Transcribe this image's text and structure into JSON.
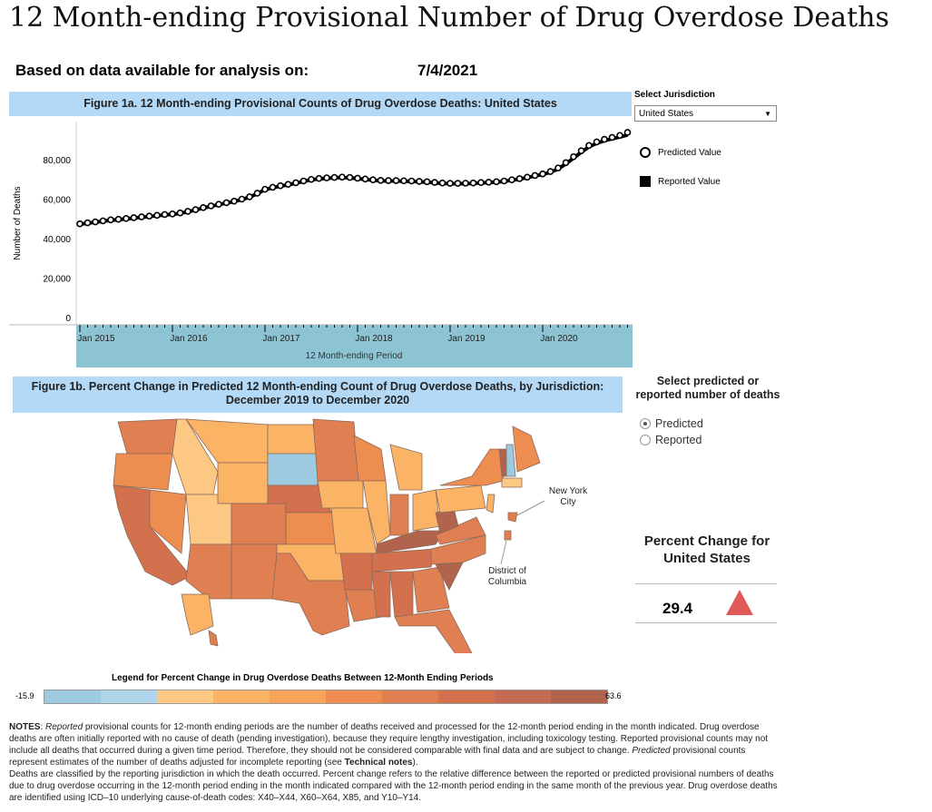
{
  "page": {
    "title": "12 Month-ending Provisional Number of Drug Overdose Deaths",
    "based_label": "Based on data available for analysis on:",
    "date": "7/4/2021"
  },
  "controls": {
    "jurisdiction_label": "Select Jurisdiction",
    "jurisdiction_value": "United States",
    "legend_predicted": "Predicted Value",
    "legend_reported": "Reported Value",
    "select_label": "Select predicted or reported number of deaths",
    "radio_predicted": "Predicted",
    "radio_reported": "Reported"
  },
  "figure1b": {
    "title": "Figure 1b. Percent Change in Predicted 12 Month-ending Count of Drug Overdose Deaths, by Jurisdiction: December 2019 to December 2020",
    "nyc": "New York City",
    "dc": "District of Columbia",
    "legend_title": "Legend for Percent Change in Drug Overdose Deaths Between 12-Month Ending Periods",
    "legend_min": "-15.9",
    "legend_max": "63.6",
    "ramp": [
      "#9ecae1",
      "#b0d6ec",
      "#fdc883",
      "#fbb366",
      "#f7a35a",
      "#ee8d50",
      "#e07f51",
      "#d3714f",
      "#c46a52",
      "#b0634d"
    ]
  },
  "percent_change": {
    "label": "Percent Change for United States",
    "value": "29.4",
    "direction": "up",
    "color": "#e05a5a"
  },
  "notes": {
    "p1_bold": "NOTES",
    "p1_em1": "Reported",
    "p1a": " provisional counts for 12-month ending periods are the number of deaths received and processed for the 12-month period ending in the month indicated. Drug overdose deaths are often initially reported with no cause of death (pending investigation), because they require lengthy investigation, including toxicology testing. Reported provisional counts may not include all deaths that occurred during a given time period. Therefore, they should not be considered comparable with final data and are subject to change. ",
    "p1_em2": "Predicted",
    "p1b": " provisional counts represent estimates of the number of deaths adjusted for incomplete reporting (see ",
    "p1_link": "Technical notes",
    "p1c": ").",
    "p2": "Deaths are classified by the reporting jurisdiction in which the death occurred. Percent change refers to the relative difference between the reported or predicted provisional numbers of deaths due to drug overdose occurring in the 12-month period ending in the month indicated compared with the 12-month period ending in the same month of the previous year. Drug overdose deaths are identified using ICD–10 underlying cause-of-death codes: X40–X44, X60–X64, X85, and Y10–Y14."
  },
  "chart_data": {
    "type": "line",
    "title": "Figure 1a. 12 Month-ending Provisional Counts of Drug Overdose Deaths: United States",
    "xlabel": "12 Month-ending Period",
    "ylabel": "Number of Deaths",
    "x_start": "Jan 2015",
    "x_ticks": [
      "Jan 2015",
      "Jan 2016",
      "Jan 2017",
      "Jan 2018",
      "Jan 2019",
      "Jan 2020"
    ],
    "y_ticks": [
      "0",
      "20,000",
      "40,000",
      "60,000",
      "80,000"
    ],
    "ylim": [
      0,
      100000
    ],
    "series": [
      {
        "name": "Predicted Value",
        "marker": "circle",
        "values": [
          47500,
          48000,
          48500,
          49000,
          49500,
          49800,
          50200,
          50600,
          51000,
          51400,
          51800,
          52200,
          52500,
          53000,
          53800,
          54700,
          55700,
          56600,
          57400,
          58200,
          59000,
          60000,
          61200,
          63000,
          65000,
          66000,
          66800,
          67500,
          68300,
          69200,
          70000,
          70500,
          70800,
          71000,
          71200,
          71000,
          70600,
          70200,
          69800,
          69500,
          69400,
          69400,
          69300,
          69200,
          69000,
          68800,
          68500,
          68200,
          68000,
          68000,
          68100,
          68200,
          68400,
          68600,
          68800,
          69200,
          69800,
          70400,
          71100,
          72000,
          72800,
          74000,
          75800,
          78500,
          81500,
          84500,
          87200,
          89000,
          90300,
          91300,
          92300,
          93800
        ]
      },
      {
        "name": "Reported Value",
        "marker": "line",
        "values": [
          47300,
          47800,
          48300,
          48800,
          49300,
          49600,
          50000,
          50400,
          50800,
          51200,
          51600,
          52000,
          52300,
          52800,
          53600,
          54500,
          55500,
          56400,
          57200,
          58000,
          58800,
          59800,
          61000,
          62800,
          64800,
          65800,
          66600,
          67300,
          68100,
          69000,
          69800,
          70300,
          70600,
          70800,
          71000,
          70800,
          70400,
          70000,
          69600,
          69300,
          69200,
          69200,
          69100,
          69000,
          68800,
          68600,
          68300,
          68000,
          67800,
          67800,
          67900,
          68000,
          68200,
          68400,
          68600,
          69000,
          69600,
          70200,
          70900,
          71800,
          72500,
          73600,
          75300,
          77900,
          80800,
          83800,
          86500,
          88300,
          89600,
          90600,
          91500,
          92500
        ]
      }
    ]
  }
}
